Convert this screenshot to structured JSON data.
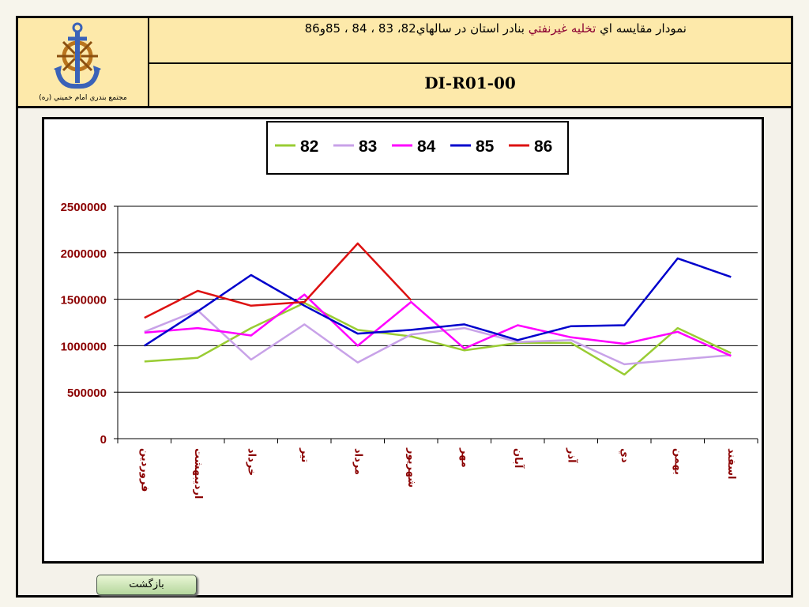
{
  "header": {
    "title_prefix": "نمودار مقایسه اي ",
    "title_highlight": "تخلیه غیرنفتي",
    "title_suffix": " بنادر استان در سالهاي82، 83 ، 84 ، 85و86",
    "code": "DI-R01-00",
    "org_name": "مجتمع بندري امام خميني (ره)",
    "logo_icon": "anchor-ship-wheel-logo"
  },
  "back_button": {
    "label": "بازگشت"
  },
  "chart_data": {
    "type": "line",
    "categories": [
      "فروردين",
      "ارديبهشت",
      "خرداد",
      "تير",
      "مرداد",
      "شهريور",
      "مهر",
      "آبان",
      "آذر",
      "دي",
      "بهمن",
      "اسفند"
    ],
    "ylim": [
      0,
      2500000
    ],
    "yticks": [
      "0",
      "500000",
      "1000000",
      "1500000",
      "2000000",
      "2500000"
    ],
    "grid": true,
    "legend_position": "top-center",
    "series": [
      {
        "name": "82",
        "color": "#99cc33",
        "values": [
          830000,
          870000,
          1190000,
          1460000,
          1170000,
          1100000,
          950000,
          1030000,
          1030000,
          690000,
          1190000,
          920000
        ]
      },
      {
        "name": "83",
        "color": "#c8a2e8",
        "values": [
          1150000,
          1380000,
          850000,
          1230000,
          820000,
          1120000,
          1190000,
          1040000,
          1060000,
          800000,
          850000,
          900000
        ]
      },
      {
        "name": "84",
        "color": "#ff00ff",
        "values": [
          1140000,
          1190000,
          1110000,
          1550000,
          1000000,
          1470000,
          970000,
          1220000,
          1090000,
          1020000,
          1150000,
          890000
        ]
      },
      {
        "name": "85",
        "color": "#0000cc",
        "values": [
          1000000,
          1370000,
          1760000,
          1430000,
          1130000,
          1170000,
          1230000,
          1060000,
          1210000,
          1220000,
          1940000,
          1740000
        ]
      },
      {
        "name": "86",
        "color": "#dd1111",
        "values": [
          1300000,
          1590000,
          1430000,
          1470000,
          2100000,
          1490000,
          null,
          null,
          null,
          null,
          null,
          null
        ]
      }
    ]
  }
}
